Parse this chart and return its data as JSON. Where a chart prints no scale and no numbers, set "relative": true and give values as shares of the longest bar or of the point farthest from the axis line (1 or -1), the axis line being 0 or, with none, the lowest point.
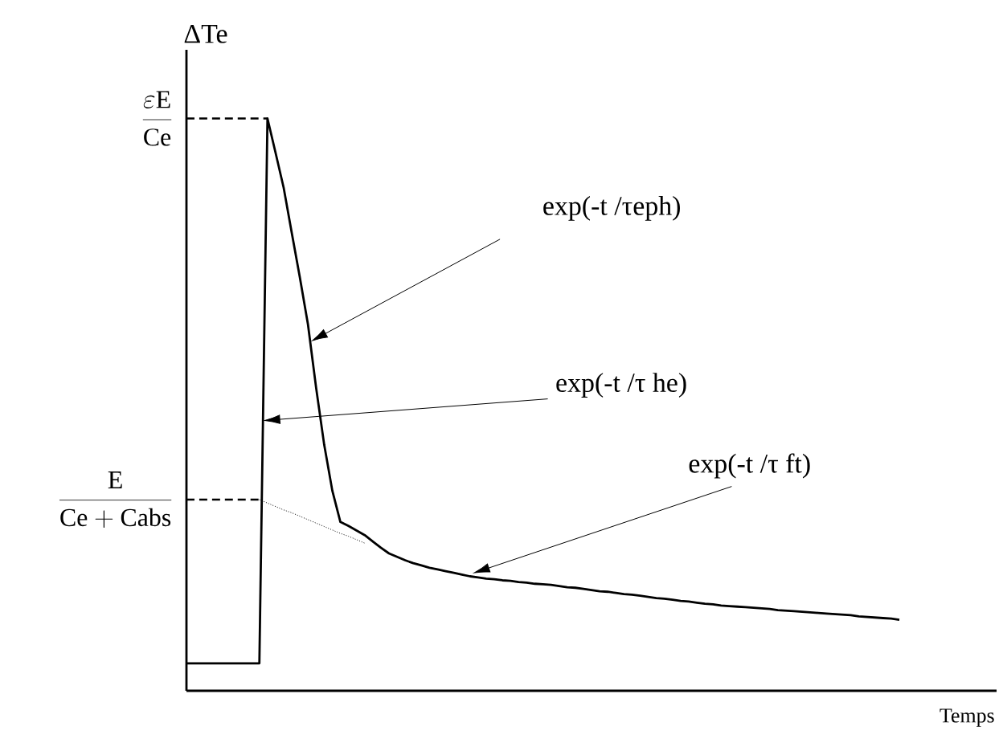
{
  "chart_data": {
    "type": "line",
    "relative": true,
    "xlabel": "Temps",
    "ylabel": "ΔTe",
    "marker": "none",
    "categories": [
      null,
      null,
      null,
      null,
      null,
      null,
      null,
      null,
      null,
      null,
      null,
      null,
      null,
      null,
      null,
      null,
      null,
      null,
      null,
      null,
      null,
      null,
      null,
      null,
      null,
      null,
      null,
      null,
      null,
      null,
      null,
      null,
      null,
      null,
      null,
      null,
      null,
      null,
      null,
      null,
      null,
      null,
      null,
      null,
      null,
      null,
      null,
      null,
      null,
      null,
      null,
      null,
      null,
      null,
      null,
      null,
      null,
      null,
      null,
      null,
      null,
      null,
      null,
      null,
      null,
      null,
      null,
      null,
      null,
      null,
      null,
      null,
      null,
      null,
      null,
      null,
      null,
      null,
      null,
      null,
      null,
      null,
      null,
      null,
      null,
      null,
      null,
      null,
      null,
      null,
      null,
      null,
      null,
      null,
      null,
      null,
      null,
      null,
      null,
      null
    ],
    "series": [
      {
        "color": "#000000",
        "line_style": "solid",
        "values": [
          0.048,
          0.048,
          0.048,
          0.048,
          0.048,
          0.048,
          0.048,
          0.048,
          0.048,
          0.048,
          1.0,
          0.94,
          0.879,
          0.8,
          0.722,
          0.64,
          0.53,
          0.43,
          0.35,
          0.295,
          0.288,
          0.28,
          0.272,
          0.261,
          0.25,
          0.24,
          0.234,
          0.228,
          0.223,
          0.219,
          0.215,
          0.212,
          0.209,
          0.206,
          0.203,
          0.2,
          0.198,
          0.196,
          0.195,
          0.193,
          0.192,
          0.19,
          0.189,
          0.187,
          0.186,
          0.185,
          0.183,
          0.181,
          0.18,
          0.178,
          0.176,
          0.174,
          0.173,
          0.171,
          0.169,
          0.168,
          0.166,
          0.164,
          0.162,
          0.161,
          0.159,
          0.157,
          0.156,
          0.154,
          0.152,
          0.151,
          0.149,
          0.148,
          0.147,
          0.146,
          0.145,
          0.144,
          0.143,
          0.141,
          0.14,
          0.139,
          0.138,
          0.137,
          0.136,
          0.135,
          0.134,
          0.133,
          0.132,
          0.13,
          0.129,
          0.128,
          0.127,
          0.126,
          0.124,
          null,
          null,
          null,
          null,
          null,
          null,
          null,
          null,
          null,
          null,
          null
        ]
      },
      {
        "color": "#000000",
        "line_style": "dotted",
        "values": [
          null,
          null,
          null,
          null,
          null,
          null,
          null,
          null,
          null,
          0.334,
          0.328,
          0.322,
          0.316,
          0.311,
          0.305,
          0.299,
          0.293,
          0.287,
          0.281,
          0.275,
          0.27,
          0.264,
          0.258,
          null,
          null,
          null,
          null,
          null,
          null,
          null,
          null,
          null,
          null,
          null,
          null,
          null,
          null,
          null,
          null,
          null,
          null,
          null,
          null,
          null,
          null,
          null,
          null,
          null,
          null,
          null,
          null,
          null,
          null,
          null,
          null,
          null,
          null,
          null,
          null,
          null,
          null,
          null,
          null,
          null,
          null,
          null,
          null,
          null,
          null,
          null,
          null,
          null,
          null,
          null,
          null,
          null,
          null,
          null,
          null,
          null,
          null,
          null,
          null,
          null,
          null,
          null,
          null,
          null,
          null,
          null,
          null,
          null,
          null,
          null,
          null,
          null,
          null,
          null,
          null,
          null
        ]
      }
    ],
    "ref_lines": [
      {
        "axis": "y",
        "value": 1,
        "label": "\\frac{\\mathrm{\\varepsilon E}}{\\mathrm{Ce}}",
        "line_style": "dashed"
      },
      {
        "axis": "y",
        "value": 0.334,
        "label": "\\frac{\\mathrm{E}}{\\mathrm{Ce + Cabs}}",
        "line_style": "dashed"
      }
    ],
    "annotations": [
      "exp(-t /τeph)",
      "exp(-t /τ he)",
      "exp(-t /τ ft)"
    ]
  }
}
